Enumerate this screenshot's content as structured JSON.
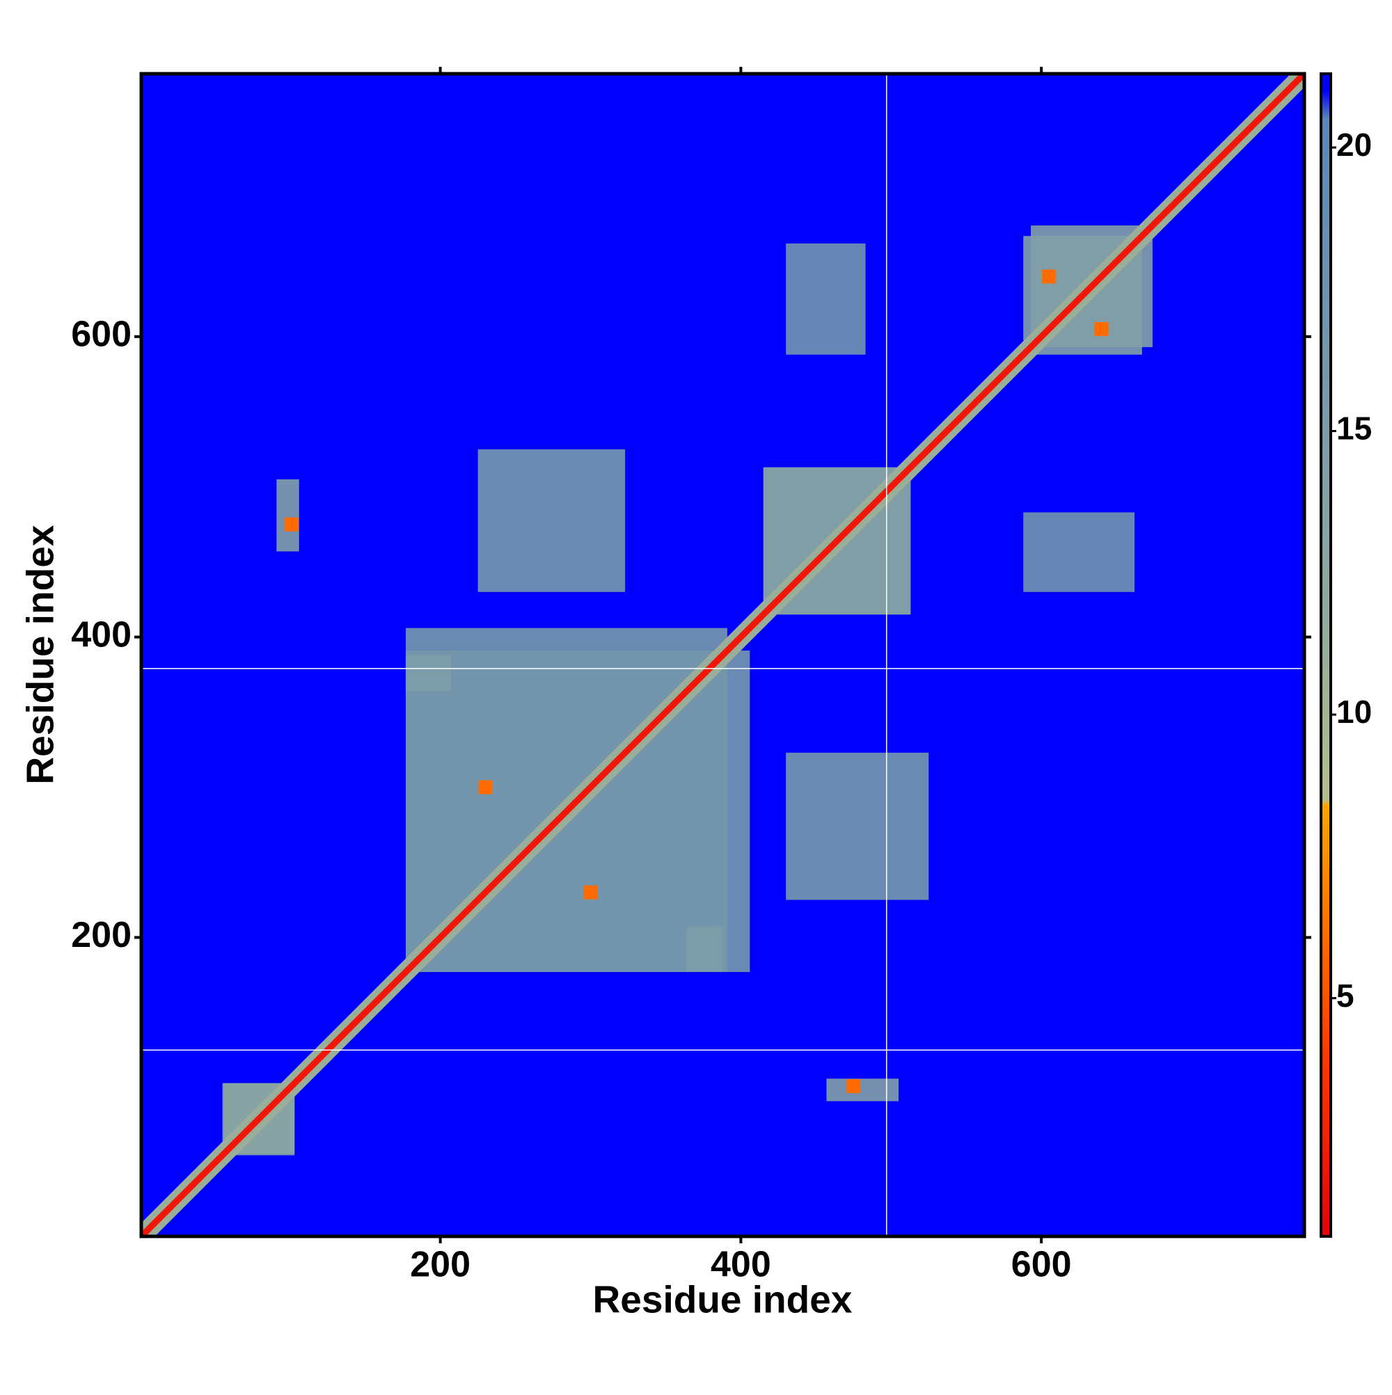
{
  "chart_data": {
    "type": "heatmap",
    "xlabel": "Residue index",
    "ylabel": "Residue index",
    "xlim": [
      1,
      775
    ],
    "ylim": [
      1,
      775
    ],
    "xticks": [
      200,
      400,
      600
    ],
    "yticks": [
      200,
      400,
      600
    ],
    "colorbar_lim": [
      0.8,
      21.3
    ],
    "colorbar_ticks": [
      5,
      10,
      15,
      20
    ],
    "colorscale": [
      {
        "value": 0.8,
        "color": "#e8000b"
      },
      {
        "value": 4,
        "color": "#ff3a00"
      },
      {
        "value": 8.4,
        "color": "#ffa500"
      },
      {
        "value": 8.5,
        "color": "#b4bf8c"
      },
      {
        "value": 12,
        "color": "#8fa8a0"
      },
      {
        "value": 20.5,
        "color": "#5a87b8"
      },
      {
        "value": 21,
        "color": "#0000ff"
      },
      {
        "value": 21.3,
        "color": "#0000ff"
      }
    ],
    "background_value": 21.3,
    "diagonal": {
      "from": 1,
      "to": 775,
      "value": 2,
      "halo_value": 11
    },
    "regions": [
      {
        "x": [
          177,
          406
        ],
        "y": [
          177,
          391
        ],
        "value": 16
      },
      {
        "x": [
          225,
          323
        ],
        "y": [
          430,
          525
        ],
        "value": 16
      },
      {
        "x": [
          415,
          513
        ],
        "y": [
          415,
          513
        ],
        "value": 14
      },
      {
        "x": [
          593,
          667
        ],
        "y": [
          588,
          674
        ],
        "value": 14
      },
      {
        "x": [
          430,
          483
        ],
        "y": [
          588,
          662
        ],
        "value": 17
      },
      {
        "x": [
          91,
          106
        ],
        "y": [
          457,
          505
        ],
        "value": 14
      },
      {
        "x": [
          56,
          103
        ],
        "y": [
          55,
          103
        ],
        "value": 13
      },
      {
        "x": [
          364,
          388
        ],
        "y": [
          177,
          207
        ],
        "value": 15
      }
    ],
    "contacts": [
      {
        "x": 101,
        "y": 475,
        "value": 6
      },
      {
        "x": 640,
        "y": 605,
        "value": 6
      },
      {
        "x": 300,
        "y": 230,
        "value": 6
      }
    ],
    "vlines": [
      497
    ],
    "hlines": [
      125,
      379
    ]
  }
}
